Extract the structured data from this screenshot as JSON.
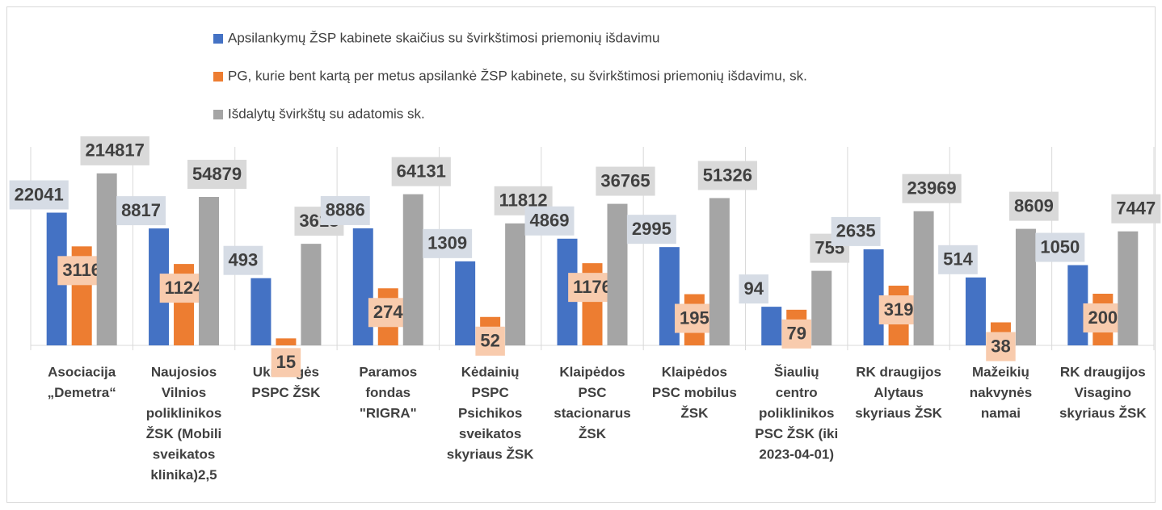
{
  "chart_data": {
    "type": "bar",
    "categories": [
      [
        "Asociacija",
        "„Demetra“"
      ],
      [
        "Naujosios",
        "Vilnios",
        "poliklinikos",
        "ŽSK (Mobili",
        "sveikatos",
        "klinika)2,5"
      ],
      [
        "Ukmergės",
        "PSPC ŽSK"
      ],
      [
        "Paramos",
        "fondas",
        "\"RIGRA\""
      ],
      [
        "Kėdainių",
        "PSPC",
        "Psichikos",
        "sveikatos",
        "skyriaus ŽSK"
      ],
      [
        "Klaipėdos",
        "PSC",
        "stacionarus",
        "ŽSK"
      ],
      [
        "Klaipėdos",
        "PSC mobilus",
        "ŽSK"
      ],
      [
        "Šiaulių",
        "centro",
        "poliklinikos",
        "PSC ŽSK (iki",
        "2023-04-01)"
      ],
      [
        "RK draugijos",
        "Alytaus",
        "skyriaus ŽSK"
      ],
      [
        "Mažeikių",
        "nakvynės",
        "namai"
      ],
      [
        "RK draugijos",
        "Visagino",
        "skyriaus ŽSK"
      ]
    ],
    "series": [
      {
        "name": "Apsilankymų ŽSP kabinete skaičius su švirkštimosi priemonių išdavimu",
        "color": "#4472c4",
        "label_color": "#d6dce5",
        "values": [
          22041,
          8817,
          493,
          8886,
          1309,
          4869,
          2995,
          94,
          2635,
          514,
          1050
        ]
      },
      {
        "name": "PG, kurie bent kartą per metus apsilankė ŽSP kabinete, su švirkštimosi priemonių išdavimu, sk.",
        "color": "#ed7d31",
        "label_color": "#f8cbad",
        "values": [
          3116,
          1124,
          15,
          274,
          52,
          1176,
          195,
          79,
          319,
          38,
          200
        ]
      },
      {
        "name": "Išdalytų švirkštų su adatomis sk.",
        "color": "#a5a5a5",
        "label_color": "#d9d9d9",
        "values": [
          214817,
          54879,
          3618,
          64131,
          11812,
          36765,
          51326,
          755,
          23969,
          8609,
          7447
        ]
      }
    ],
    "log_scale": true,
    "ylim": [
      10,
      1000000
    ]
  }
}
